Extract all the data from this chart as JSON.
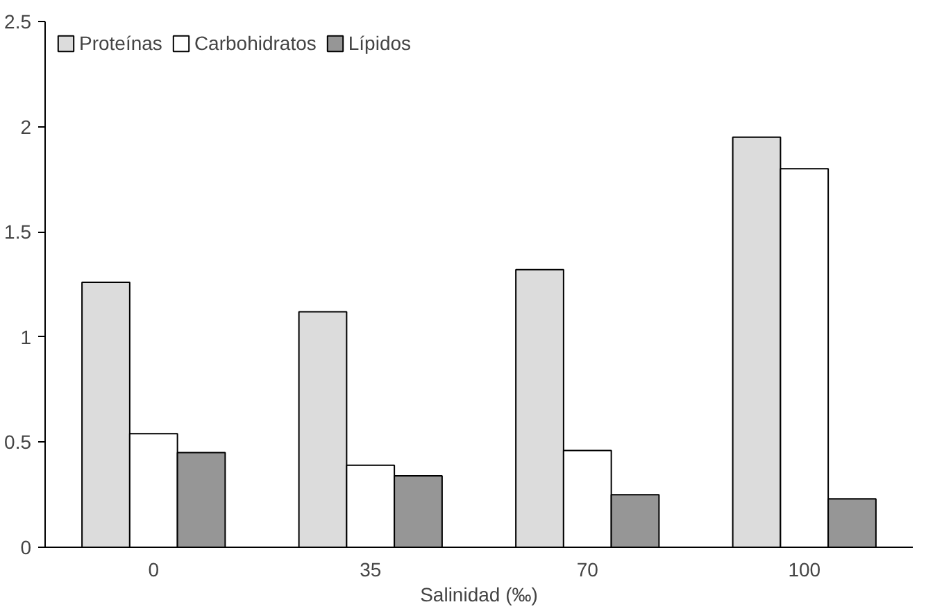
{
  "chart_data": {
    "type": "bar",
    "xlabel": "Salinidad (‰)",
    "categories": [
      "0",
      "35",
      "70",
      "100"
    ],
    "series": [
      {
        "name": "Proteínas",
        "color": "#dcdcdc",
        "values": [
          1.26,
          1.12,
          1.32,
          1.95
        ]
      },
      {
        "name": "Carbohidratos",
        "color": "#ffffff",
        "values": [
          0.54,
          0.39,
          0.46,
          1.8
        ]
      },
      {
        "name": "Lípidos",
        "color": "#969696",
        "values": [
          0.45,
          0.34,
          0.25,
          0.23
        ]
      }
    ],
    "ylim": [
      0,
      2.5
    ],
    "yticks": [
      0,
      0.5,
      1,
      1.5,
      2,
      2.5
    ],
    "grid": false,
    "legend": "top left"
  }
}
